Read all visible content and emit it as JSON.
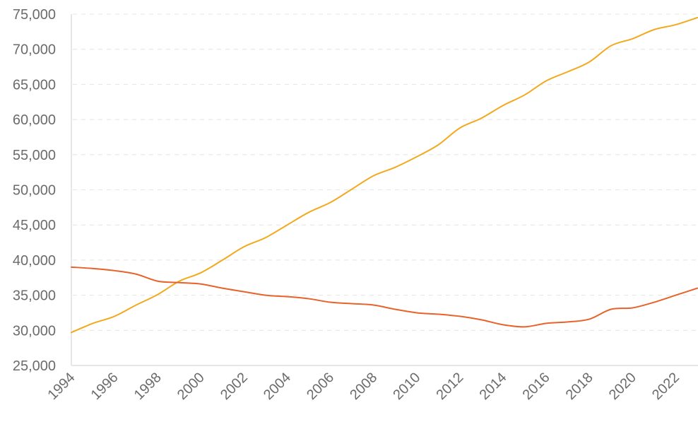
{
  "chart_data": {
    "type": "line",
    "title": "",
    "xlabel": "",
    "ylabel": "",
    "xlim": [
      1994,
      2023
    ],
    "ylim": [
      25000,
      75000
    ],
    "y_ticks": [
      25000,
      30000,
      35000,
      40000,
      45000,
      50000,
      55000,
      60000,
      65000,
      70000,
      75000
    ],
    "y_tick_labels": [
      "25,000",
      "30,000",
      "35,000",
      "40,000",
      "45,000",
      "50,000",
      "55,000",
      "60,000",
      "65,000",
      "70,000",
      "75,000"
    ],
    "x_ticks": [
      1994,
      1996,
      1998,
      2000,
      2002,
      2004,
      2006,
      2008,
      2010,
      2012,
      2014,
      2016,
      2018,
      2020,
      2022
    ],
    "x_tick_labels": [
      "1994",
      "1996",
      "1998",
      "2000",
      "2002",
      "2004",
      "2006",
      "2008",
      "2010",
      "2012",
      "2014",
      "2016",
      "2018",
      "2020",
      "2022"
    ],
    "grid": true,
    "x": [
      1994,
      1995,
      1996,
      1997,
      1998,
      1999,
      2000,
      2001,
      2002,
      2003,
      2004,
      2005,
      2006,
      2007,
      2008,
      2009,
      2010,
      2011,
      2012,
      2013,
      2014,
      2015,
      2016,
      2017,
      2018,
      2019,
      2020,
      2021,
      2022,
      2023
    ],
    "series": [
      {
        "name": "series-yellow",
        "color": "#f2a91e",
        "values": [
          29700,
          31000,
          32000,
          33600,
          35100,
          37000,
          38200,
          40000,
          41900,
          43200,
          45000,
          46800,
          48200,
          50100,
          52000,
          53200,
          54700,
          56400,
          58800,
          60200,
          62000,
          63500,
          65500,
          66800,
          68200,
          70500,
          71500,
          72800,
          73500,
          74500
        ]
      },
      {
        "name": "series-orange",
        "color": "#e8622a",
        "values": [
          39000,
          38800,
          38500,
          38000,
          37000,
          36800,
          36600,
          36000,
          35500,
          35000,
          34800,
          34500,
          34000,
          33800,
          33600,
          33000,
          32500,
          32300,
          32000,
          31500,
          30800,
          30500,
          31000,
          31200,
          31600,
          33000,
          33200,
          34000,
          35000,
          36000
        ]
      }
    ]
  }
}
